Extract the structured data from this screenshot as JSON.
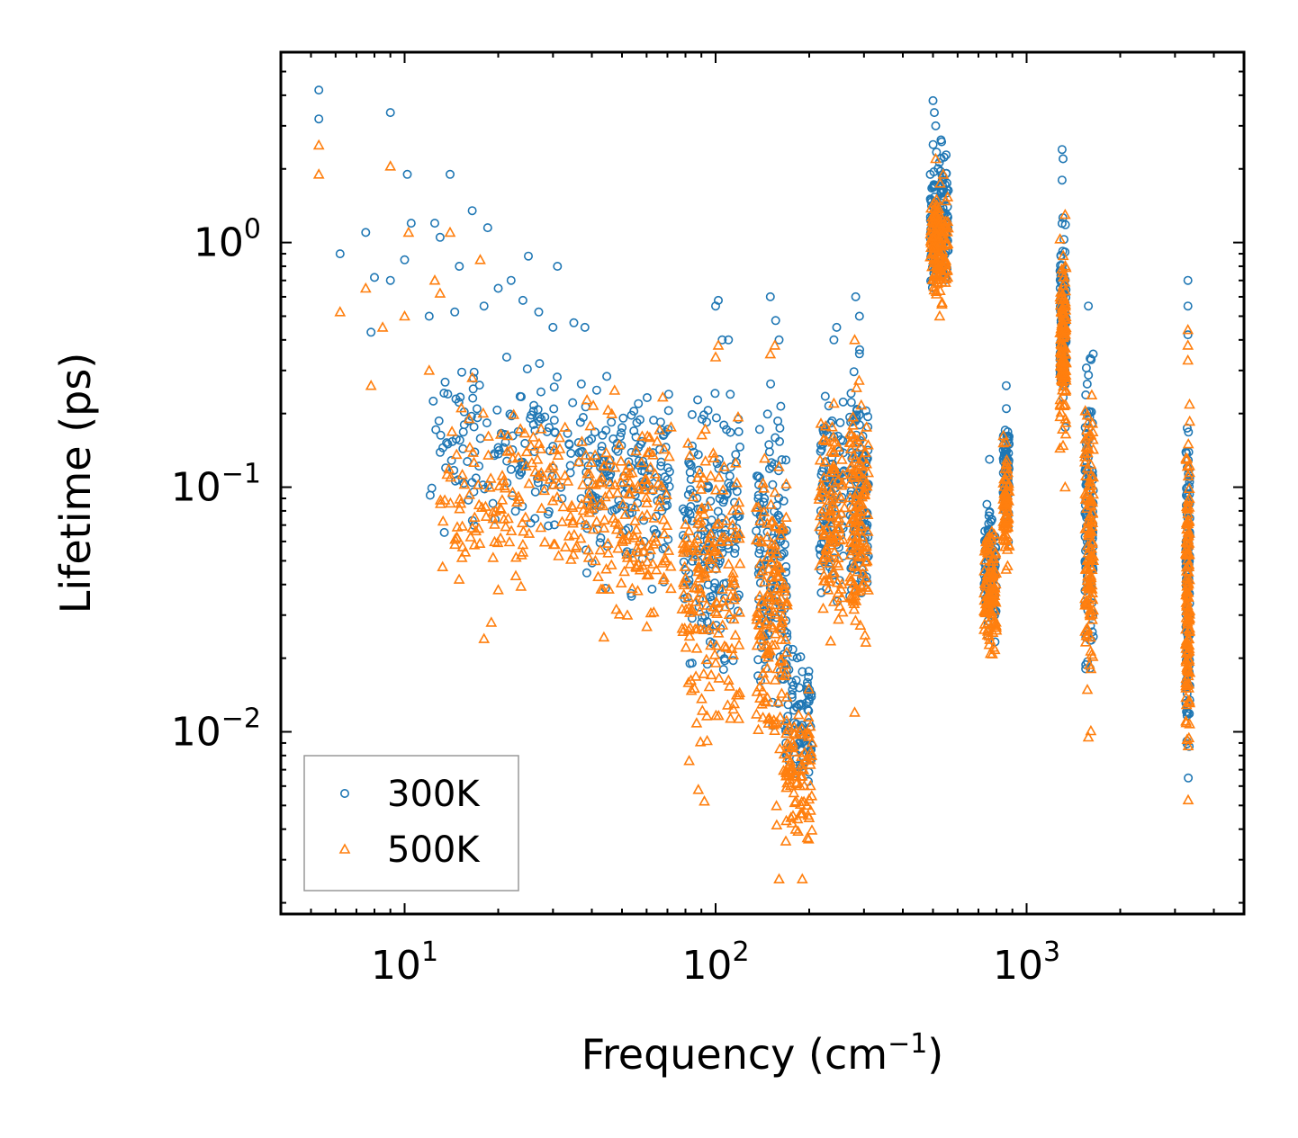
{
  "chart_data": {
    "type": "scatter",
    "x_scale": "log",
    "y_scale": "log",
    "xlabel": "Frequency (cm",
    "xlabel_sup": "−1",
    "xlabel_end": ")",
    "ylabel": "Lifetime (ps)",
    "xlim": [
      4.0,
      5000
    ],
    "ylim": [
      0.0018,
      6.0
    ],
    "x_major_ticks": [
      {
        "value": 10,
        "base": "10",
        "exp": "1"
      },
      {
        "value": 100,
        "base": "10",
        "exp": "2"
      },
      {
        "value": 1000,
        "base": "10",
        "exp": "3"
      }
    ],
    "y_major_ticks": [
      {
        "value": 0.01,
        "base": "10",
        "exp": "−2"
      },
      {
        "value": 0.1,
        "base": "10",
        "exp": "−1"
      },
      {
        "value": 1,
        "base": "10",
        "exp": "0"
      }
    ],
    "legend_position": "lower-left",
    "series": [
      {
        "name": "300K",
        "marker": "circle",
        "color": "#1f77b4",
        "points": [
          [
            5.3,
            4.2
          ],
          [
            5.3,
            3.2
          ],
          [
            9.0,
            3.4
          ],
          [
            10.2,
            1.9
          ],
          [
            14,
            1.9
          ],
          [
            16.5,
            1.35
          ],
          [
            18.5,
            1.15
          ],
          [
            7.5,
            1.1
          ],
          [
            12.5,
            1.2
          ],
          [
            13,
            1.05
          ],
          [
            10.5,
            1.2
          ],
          [
            6.2,
            0.9
          ],
          [
            10,
            0.85
          ],
          [
            15,
            0.8
          ],
          [
            25,
            0.88
          ],
          [
            22,
            0.7
          ],
          [
            31,
            0.8
          ],
          [
            8,
            0.72
          ],
          [
            9,
            0.7
          ],
          [
            12,
            0.5
          ],
          [
            14.5,
            0.52
          ],
          [
            18,
            0.55
          ],
          [
            20,
            0.65
          ],
          [
            24,
            0.58
          ],
          [
            27,
            0.52
          ],
          [
            30,
            0.45
          ],
          [
            35,
            0.47
          ],
          [
            38,
            0.45
          ],
          [
            7.8,
            0.43
          ],
          [
            100,
            0.55
          ],
          [
            102,
            0.58
          ],
          [
            105,
            0.4
          ],
          [
            110,
            0.4
          ],
          [
            150,
            0.6
          ],
          [
            156,
            0.48
          ],
          [
            160,
            0.4
          ],
          [
            240,
            0.4
          ],
          [
            245,
            0.45
          ],
          [
            282,
            0.6
          ],
          [
            290,
            0.5
          ],
          [
            3300,
            0.7
          ],
          [
            3300,
            0.55
          ],
          [
            3300,
            0.42
          ],
          [
            1300,
            2.4
          ],
          [
            1310,
            2.2
          ],
          [
            1300,
            1.8
          ],
          [
            500,
            3.8
          ],
          [
            505,
            3.4
          ],
          [
            510,
            3.0
          ],
          [
            760,
            0.13
          ],
          [
            860,
            0.26
          ],
          [
            1580,
            0.55
          ]
        ],
        "clusters": [
          {
            "x": [
              12,
              38
            ],
            "y": [
              0.05,
              0.42
            ],
            "n": 150
          },
          {
            "x": [
              38,
              72
            ],
            "y": [
              0.03,
              0.38
            ],
            "n": 160
          },
          {
            "x": [
              78,
              120
            ],
            "y": [
              0.012,
              0.35
            ],
            "n": 170
          },
          {
            "x": [
              135,
              170
            ],
            "y": [
              0.006,
              0.35
            ],
            "n": 140
          },
          {
            "x": [
              168,
              205
            ],
            "y": [
              0.004,
              0.028
            ],
            "n": 90
          },
          {
            "x": [
              215,
              260
            ],
            "y": [
              0.022,
              0.35
            ],
            "n": 110
          },
          {
            "x": [
              270,
              310
            ],
            "y": [
              0.018,
              0.45
            ],
            "n": 130
          },
          {
            "x": [
              490,
              560
            ],
            "y": [
              0.5,
              3.3
            ],
            "n": 150
          },
          {
            "x": [
              730,
              800
            ],
            "y": [
              0.018,
              0.11
            ],
            "n": 110
          },
          {
            "x": [
              840,
              880
            ],
            "y": [
              0.05,
              0.26
            ],
            "n": 80
          },
          {
            "x": [
              1280,
              1340
            ],
            "y": [
              0.15,
              1.6
            ],
            "n": 120
          },
          {
            "x": [
              1540,
              1640
            ],
            "y": [
              0.011,
              0.5
            ],
            "n": 130
          },
          {
            "x": [
              3250,
              3350
            ],
            "y": [
              0.005,
              0.3
            ],
            "n": 140
          }
        ]
      },
      {
        "name": "500K",
        "marker": "triangle",
        "color": "#ff7f0e",
        "points": [
          [
            5.3,
            2.5
          ],
          [
            5.3,
            1.9
          ],
          [
            9.0,
            2.05
          ],
          [
            10.3,
            1.1
          ],
          [
            14,
            1.1
          ],
          [
            17.5,
            0.85
          ],
          [
            7.5,
            0.65
          ],
          [
            6.2,
            0.52
          ],
          [
            8.5,
            0.45
          ],
          [
            10,
            0.5
          ],
          [
            12.5,
            0.7
          ],
          [
            13,
            0.62
          ],
          [
            7.8,
            0.26
          ],
          [
            12,
            0.3
          ],
          [
            16.5,
            0.28
          ],
          [
            18,
            0.024
          ],
          [
            19,
            0.028
          ],
          [
            20,
            0.038
          ],
          [
            100,
            0.34
          ],
          [
            102,
            0.38
          ],
          [
            150,
            0.35
          ],
          [
            155,
            0.38
          ],
          [
            240,
            0.22
          ],
          [
            280,
            0.4
          ],
          [
            280,
            0.012
          ],
          [
            3300,
            0.44
          ],
          [
            3300,
            0.38
          ],
          [
            3300,
            0.33
          ],
          [
            1330,
            1.3
          ],
          [
            1330,
            0.1
          ],
          [
            1580,
            0.0095
          ],
          [
            510,
            2.2
          ],
          [
            190,
            0.0025
          ],
          [
            160,
            0.0025
          ],
          [
            88,
            0.0058
          ],
          [
            92,
            0.0052
          ]
        ],
        "clusters": [
          {
            "x": [
              13,
              38
            ],
            "y": [
              0.03,
              0.3
            ],
            "n": 150
          },
          {
            "x": [
              38,
              72
            ],
            "y": [
              0.018,
              0.3
            ],
            "n": 160
          },
          {
            "x": [
              78,
              120
            ],
            "y": [
              0.005,
              0.3
            ],
            "n": 180
          },
          {
            "x": [
              135,
              170
            ],
            "y": [
              0.003,
              0.3
            ],
            "n": 150
          },
          {
            "x": [
              168,
              205
            ],
            "y": [
              0.0025,
              0.018
            ],
            "n": 90
          },
          {
            "x": [
              215,
              260
            ],
            "y": [
              0.018,
              0.3
            ],
            "n": 110
          },
          {
            "x": [
              270,
              310
            ],
            "y": [
              0.014,
              0.35
            ],
            "n": 130
          },
          {
            "x": [
              490,
              560
            ],
            "y": [
              0.45,
              2.1
            ],
            "n": 150
          },
          {
            "x": [
              730,
              800
            ],
            "y": [
              0.017,
              0.085
            ],
            "n": 110
          },
          {
            "x": [
              840,
              880
            ],
            "y": [
              0.04,
              0.18
            ],
            "n": 80
          },
          {
            "x": [
              1280,
              1340
            ],
            "y": [
              0.12,
              1.2
            ],
            "n": 120
          },
          {
            "x": [
              1540,
              1640
            ],
            "y": [
              0.009,
              0.38
            ],
            "n": 130
          },
          {
            "x": [
              3250,
              3350
            ],
            "y": [
              0.0045,
              0.28
            ],
            "n": 140
          }
        ]
      }
    ]
  }
}
